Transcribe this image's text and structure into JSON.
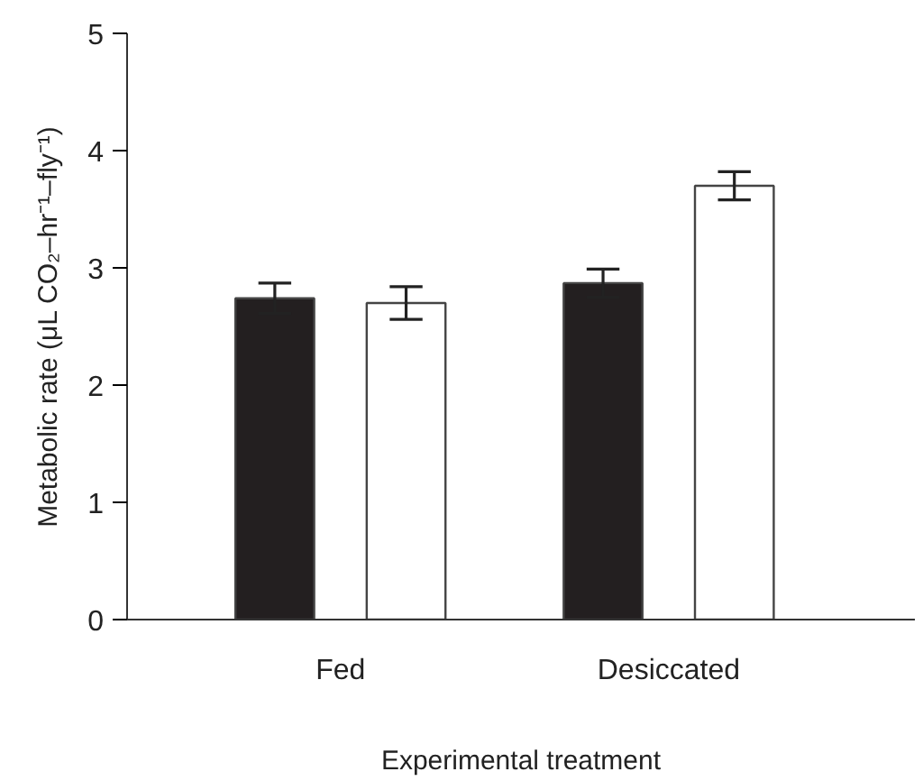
{
  "chart_data": {
    "type": "bar",
    "xlabel": "Experimental treatment",
    "ylabel": "Metabolic rate (μL CO₂–hr⁻¹–fly⁻¹)",
    "categories": [
      "Fed",
      "Desiccated"
    ],
    "series": [
      {
        "color": "#231f20",
        "values": [
          2.74,
          2.87
        ],
        "errors": [
          0.13,
          0.12
        ]
      },
      {
        "color": "#ffffff",
        "values": [
          2.7,
          3.7
        ],
        "errors": [
          0.14,
          0.12
        ]
      }
    ],
    "ylim": [
      0,
      5
    ],
    "yticks": [
      0,
      1,
      2,
      3,
      4,
      5
    ],
    "grid": false
  }
}
